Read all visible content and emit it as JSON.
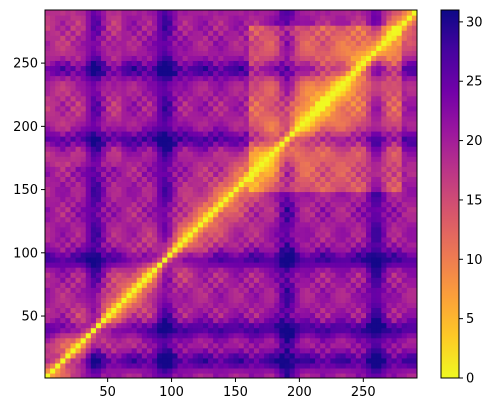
{
  "chart_data": {
    "type": "heatmap",
    "title": "",
    "xlabel": "",
    "ylabel": "",
    "xlim": [
      1,
      292
    ],
    "ylim": [
      1,
      292
    ],
    "x_ticks": [
      50,
      100,
      150,
      200,
      250
    ],
    "y_ticks": [
      50,
      100,
      150,
      200,
      250
    ],
    "colorbar": {
      "range": [
        0,
        31
      ],
      "ticks": [
        0,
        5,
        10,
        15,
        20,
        25,
        30
      ],
      "colormap": "plasma_r",
      "colors": [
        "#f0f921",
        "#fdca26",
        "#fb9f3a",
        "#ed7953",
        "#d8576b",
        "#bd3786",
        "#9c179e",
        "#7201a8",
        "#46039f",
        "#0d0887"
      ]
    },
    "description_of_values": {
      "diagonal_value": 0,
      "max_value_approx": 30,
      "strong_bands_x": [
        40,
        95,
        190,
        260
      ],
      "strong_bands_y": [
        15,
        40,
        95,
        190,
        245
      ]
    }
  }
}
